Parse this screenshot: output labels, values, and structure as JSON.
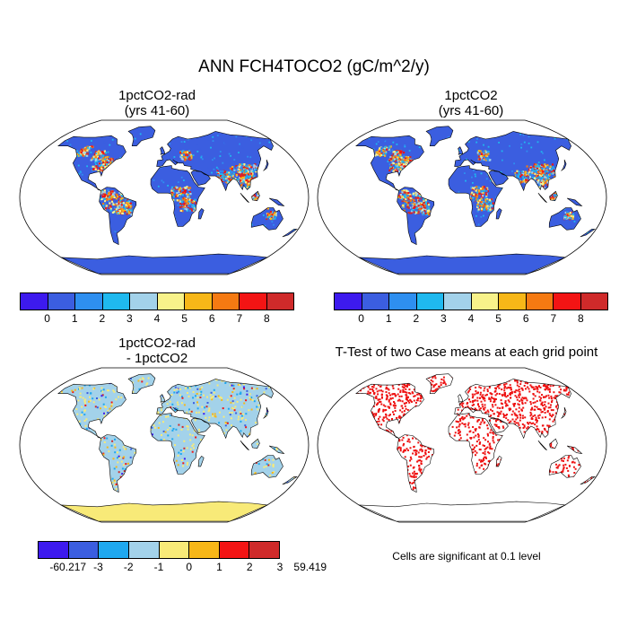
{
  "figure": {
    "title": "ANN FCH4TOCO2 (gC/m^2/y)",
    "panels": [
      {
        "id": "p1",
        "title_line1": "1pctCO2-rad",
        "title_line2": "(yrs 41-60)"
      },
      {
        "id": "p2",
        "title_line1": "1pctCO2",
        "title_line2": "(yrs 41-60)"
      },
      {
        "id": "p3",
        "title_line1": "1pctCO2-rad",
        "title_line2": "- 1pctCO2"
      },
      {
        "id": "p4",
        "title_line1": "T-Test of two Case means at each grid point",
        "title_line2": ""
      }
    ],
    "significance_note": "Cells are significant at 0.1 level"
  },
  "colorbars": {
    "levels": {
      "colors": [
        "#3d1aee",
        "#3b5ee0",
        "#2e8ff0",
        "#1fb9ef",
        "#a3d2ea",
        "#f8f28a",
        "#f7b718",
        "#f57a12",
        "#f31414",
        "#cf2a2a"
      ],
      "labels": [
        "0",
        "1",
        "2",
        "3",
        "4",
        "5",
        "6",
        "7",
        "8"
      ]
    },
    "difference": {
      "colors": [
        "#3d1aee",
        "#3b5ee0",
        "#1fa8ef",
        "#a3d2ea",
        "#f8ea78",
        "#f7b718",
        "#f31414",
        "#cf2a2a"
      ],
      "labels": [
        "-60.217",
        "-3",
        "-2",
        "-1",
        "0",
        "1",
        "2",
        "3",
        "59.419"
      ]
    }
  },
  "map_style": {
    "ocean": "#ffffff",
    "land_abs": "#3b5ee0",
    "land_diff": "#a3d2ea",
    "antarctica_diff": "#f8ea78",
    "significant": "#ee1111"
  }
}
